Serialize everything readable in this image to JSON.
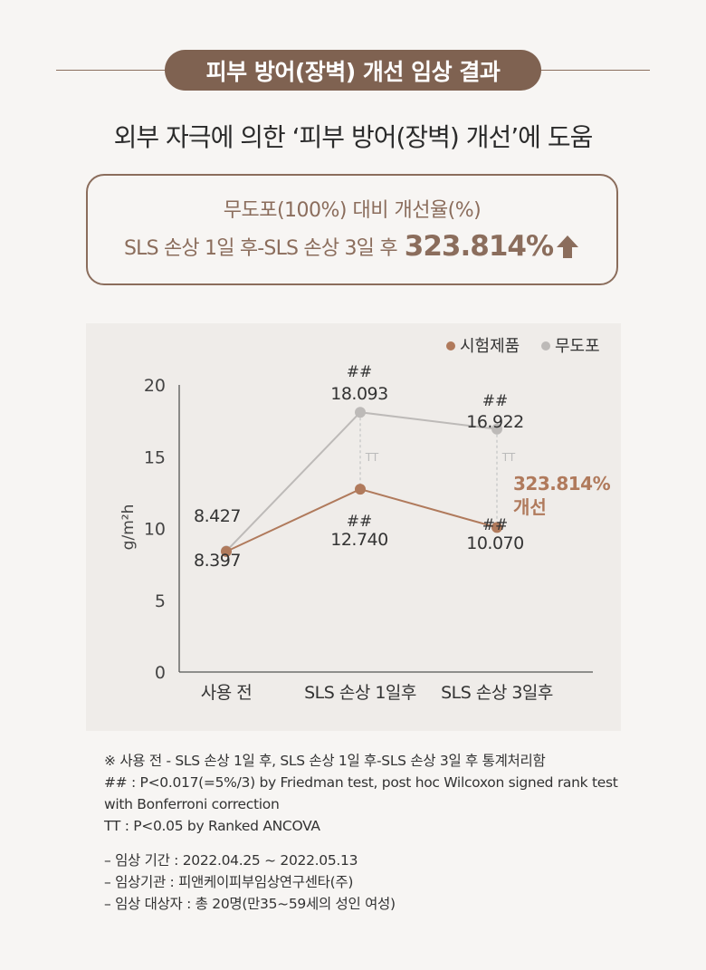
{
  "header": {
    "title": "피부 방어(장벽) 개선 임상 결과",
    "subtitle": "외부 자극에 의한 ‘피부 방어(장벽) 개선’에 도움"
  },
  "result": {
    "line1": "무도포(100%) 대비 개선율(%)",
    "line2_label": "SLS 손상 1일 후-SLS 손상 3일 후",
    "line2_value": "323.814%",
    "arrow_icon": "arrow-up-icon"
  },
  "chart_data": {
    "type": "line",
    "categories": [
      "사용 전",
      "SLS 손상 1일후",
      "SLS 손상 3일후"
    ],
    "series": [
      {
        "name": "시험제품",
        "values": [
          8.397,
          12.74,
          10.07
        ],
        "color": "#b07a5c",
        "labels": [
          "8.397",
          "12.740",
          "10.070"
        ],
        "marks": [
          "",
          "##",
          "##"
        ]
      },
      {
        "name": "무도포",
        "values": [
          8.427,
          18.093,
          16.922
        ],
        "color": "#bdbab8",
        "labels": [
          "8.427",
          "18.093",
          "16.922"
        ],
        "marks": [
          "",
          "##",
          "##"
        ]
      }
    ],
    "ylabel": "g/m²h",
    "ylim": [
      0,
      20
    ],
    "yticks": [
      0,
      5,
      10,
      15,
      20
    ],
    "ytick_labels": [
      "0",
      "5",
      "10",
      "15",
      "20"
    ],
    "tt_marks": [
      "",
      "TT",
      "TT"
    ],
    "annotation": {
      "value": "323.814%",
      "label": "개선",
      "color": "#b07a5c"
    },
    "legend": "top-right"
  },
  "notes": {
    "lines": [
      "※ 사용 전 - SLS 손상 1일 후, SLS 손상 1일 후-SLS 손상 3일 후 통계처리함",
      "## : P<0.017(=5%/3) by Friedman test, post hoc Wilcoxon signed rank test",
      "with Bonferroni correction",
      "TT : P<0.05 by Ranked ANCOVA"
    ],
    "info": [
      "–  임상 기간 : 2022.04.25 ~ 2022.05.13",
      "–  임상기관 : 피앤케이피부임상연구센타(주)",
      "–  임상 대상자 : 총 20명(만35~59세의 성인 여성)"
    ]
  },
  "colors": {
    "brand": "#7f6251",
    "accent": "#b07a5c",
    "control": "#bdbab8",
    "panel": "#efece9"
  }
}
